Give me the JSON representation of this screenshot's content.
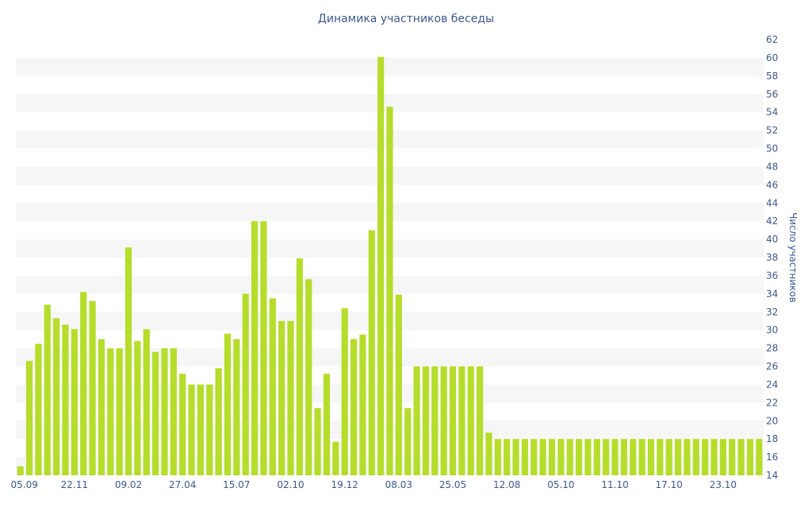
{
  "chart_data": {
    "type": "bar",
    "title": "Динамика участников беседы",
    "xlabel": "",
    "ylabel": "Число участников",
    "ylim": [
      14,
      62
    ],
    "y_ticks": [
      14,
      16,
      18,
      20,
      22,
      24,
      26,
      28,
      30,
      32,
      34,
      36,
      38,
      40,
      42,
      44,
      46,
      48,
      50,
      52,
      54,
      56,
      58,
      60,
      62
    ],
    "x_tick_labels": [
      "05.09",
      "22.11",
      "09.02",
      "27.04",
      "15.07",
      "02.10",
      "19.12",
      "08.03",
      "25.05",
      "12.08",
      "05.10",
      "11.10",
      "17.10",
      "23.10"
    ],
    "y_axis_position": "right",
    "grid": "horizontal bands",
    "bar_color": "#b5dd2a",
    "band_color": "#f6f6f6",
    "text_color": "#3b5894",
    "values": [
      15,
      26.6,
      28.5,
      32.8,
      31.3,
      30.6,
      30.1,
      34.2,
      33.2,
      29,
      28,
      28,
      39.1,
      28.8,
      30.1,
      27.6,
      28,
      28,
      25.2,
      24,
      24,
      24,
      25.8,
      29.6,
      29,
      34,
      42,
      42,
      33.5,
      31,
      31,
      37.9,
      35.6,
      21.4,
      25.2,
      17.7,
      32.4,
      29,
      29.5,
      41,
      60.1,
      54.6,
      33.9,
      21.4,
      26,
      26,
      26,
      26,
      26,
      26,
      26,
      26,
      18.7,
      18,
      18,
      18,
      18,
      18,
      18,
      18,
      18,
      18,
      18,
      18,
      18,
      18,
      18,
      18,
      18,
      18,
      18,
      18,
      18,
      18,
      18,
      18,
      18,
      18,
      18,
      18,
      18,
      18,
      18
    ]
  }
}
